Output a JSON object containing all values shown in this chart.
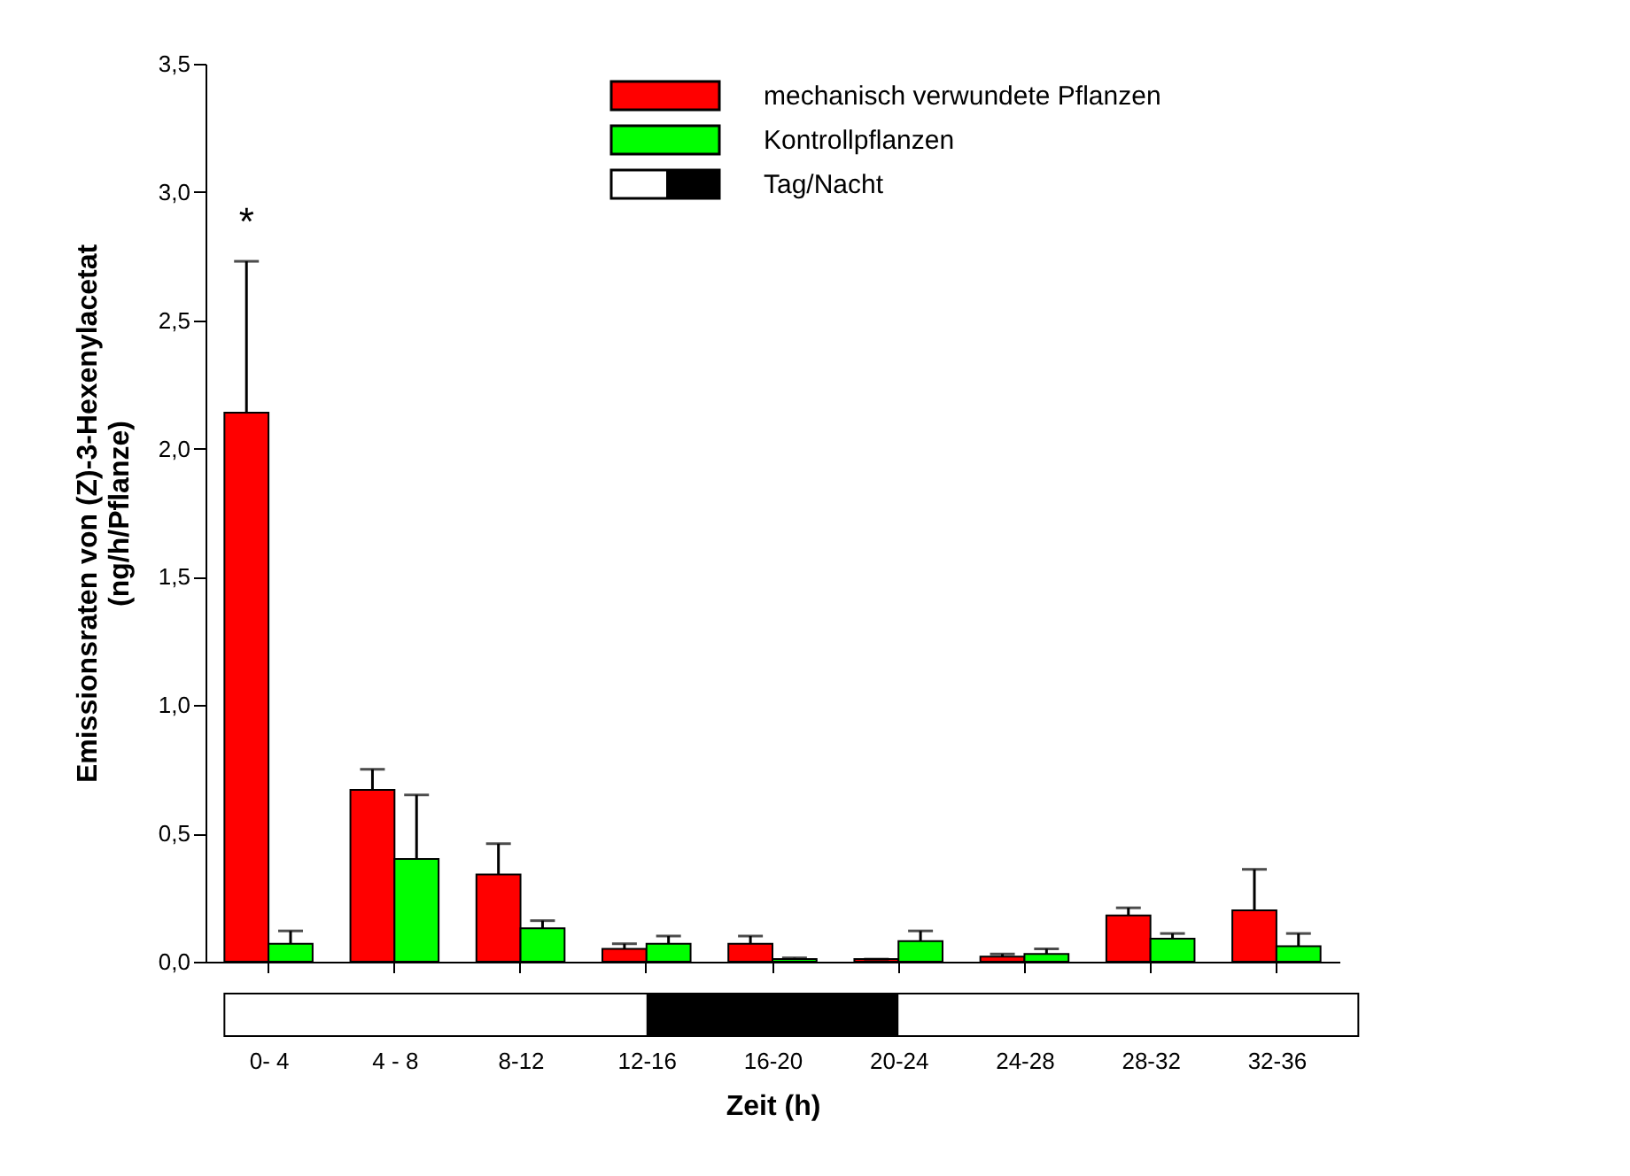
{
  "chart_data": {
    "type": "bar",
    "xlabel": "Zeit (h)",
    "ylabel": "Emissionsraten von (Z)-3-Hexenylacetat\n(ng/h/Pflanze)",
    "categories": [
      "0- 4",
      "4 - 8",
      "8-12",
      "12-16",
      "16-20",
      "20-24",
      "24-28",
      "28-32",
      "32-36"
    ],
    "series": [
      {
        "name": "mechanisch verwundete Pflanzen",
        "color": "#ff0000",
        "values": [
          2.14,
          0.67,
          0.34,
          0.05,
          0.07,
          0.01,
          0.02,
          0.18,
          0.2
        ],
        "errors": [
          [
            2.14,
            2.73
          ],
          [
            0.67,
            0.75
          ],
          [
            0.34,
            0.46
          ],
          [
            0.05,
            0.07
          ],
          [
            0.07,
            0.1
          ],
          [
            0.01,
            0.01
          ],
          [
            0.02,
            0.03
          ],
          [
            0.18,
            0.21
          ],
          [
            0.2,
            0.36
          ]
        ]
      },
      {
        "name": "Kontrollpflanzen",
        "color": "#00ff00",
        "values": [
          0.07,
          0.4,
          0.13,
          0.07,
          0.01,
          0.08,
          0.03,
          0.09,
          0.06
        ],
        "errors": [
          [
            0.07,
            0.12
          ],
          [
            0.4,
            0.65
          ],
          [
            0.13,
            0.16
          ],
          [
            0.07,
            0.1
          ],
          [
            0.01,
            0.015
          ],
          [
            0.08,
            0.12
          ],
          [
            0.03,
            0.05
          ],
          [
            0.09,
            0.11
          ],
          [
            0.06,
            0.11
          ]
        ]
      }
    ],
    "ylim": [
      0,
      3.5
    ],
    "yticks": [
      {
        "value": 0,
        "label": "0,0"
      },
      {
        "value": 0.5,
        "label": "0,5"
      },
      {
        "value": 1,
        "label": "1,0"
      },
      {
        "value": 1.5,
        "label": "1,5"
      },
      {
        "value": 2,
        "label": "2,0"
      },
      {
        "value": 2.5,
        "label": "2,5"
      },
      {
        "value": 3,
        "label": "3,0"
      },
      {
        "value": 3.5,
        "label": "3,5"
      }
    ],
    "annotations": [
      "*",
      "Tag/Nacht"
    ],
    "legend": "top right",
    "grid": false
  }
}
